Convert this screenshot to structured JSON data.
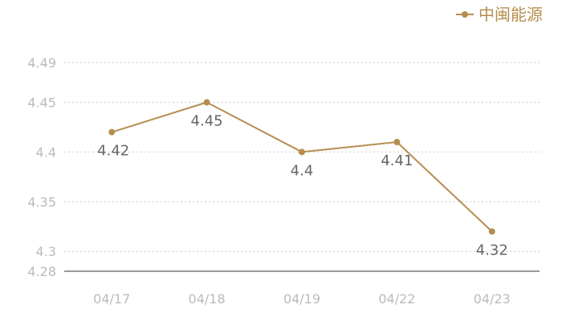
{
  "legend": {
    "label": "中闽能源"
  },
  "colors": {
    "series": "#b58e4f",
    "grid": "#cccccc",
    "axis": "#333333",
    "tick_text": "#bbbbbb",
    "data_label_text": "#666666"
  },
  "chart_data": {
    "type": "line",
    "title": "",
    "xlabel": "",
    "ylabel": "",
    "categories": [
      "04/17",
      "04/18",
      "04/19",
      "04/22",
      "04/23"
    ],
    "series": [
      {
        "name": "中闽能源",
        "values": [
          4.42,
          4.45,
          4.4,
          4.41,
          4.32
        ]
      }
    ],
    "data_labels": [
      "4.42",
      "4.45",
      "4.4",
      "4.41",
      "4.32"
    ],
    "y_ticks": [
      4.28,
      4.3,
      4.35,
      4.4,
      4.45,
      4.49
    ],
    "y_tick_labels": [
      "4.28",
      "4.3",
      "4.35",
      "4.4",
      "4.45",
      "4.49"
    ],
    "ylim": [
      4.28,
      4.49
    ],
    "grid": true,
    "legend_position": "top-right"
  }
}
